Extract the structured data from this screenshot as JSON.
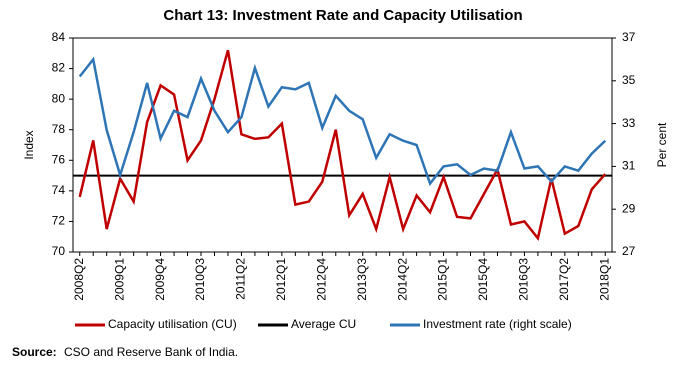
{
  "chart_data": {
    "type": "line",
    "title": "Chart 13: Investment Rate and Capacity Utilisation",
    "ylabel": "Index",
    "y2label": "Per cent",
    "categories": [
      "2008Q2",
      null,
      null,
      "2009Q1",
      null,
      null,
      "2009Q4",
      null,
      null,
      "2010Q3",
      null,
      null,
      "2011Q2",
      null,
      null,
      "2012Q1",
      null,
      null,
      "2012Q4",
      null,
      null,
      "2013Q3",
      null,
      null,
      "2014Q2",
      null,
      null,
      "2015Q1",
      null,
      null,
      "2015Q4",
      null,
      null,
      "2016Q3",
      null,
      null,
      "2017Q2",
      null,
      null,
      "2018Q1"
    ],
    "series": [
      {
        "name": "Capacity utilisation (CU)",
        "color": "#c00000",
        "axis": "y",
        "values": [
          73.6,
          77.3,
          71.5,
          74.8,
          73.3,
          78.5,
          80.9,
          80.3,
          76.0,
          77.3,
          80.0,
          83.2,
          77.7,
          77.4,
          77.5,
          78.4,
          73.1,
          73.3,
          74.6,
          78.0,
          72.4,
          73.8,
          71.5,
          74.9,
          71.5,
          73.7,
          72.6,
          74.9,
          72.3,
          72.2,
          73.8,
          75.4,
          71.8,
          72.0,
          70.9,
          74.8,
          71.2,
          71.7,
          74.1,
          75.1
        ]
      },
      {
        "name": "Investment rate (right scale)",
        "color": "#2e75b6",
        "axis": "y2",
        "values": [
          35.2,
          36.0,
          32.7,
          30.6,
          32.6,
          34.9,
          32.3,
          33.6,
          33.3,
          35.1,
          33.6,
          32.6,
          33.3,
          35.6,
          33.8,
          34.7,
          34.6,
          34.9,
          32.8,
          34.3,
          33.6,
          33.2,
          31.4,
          32.5,
          32.2,
          32.0,
          30.2,
          31.0,
          31.1,
          30.6,
          30.9,
          30.8,
          32.6,
          30.9,
          31.0,
          30.3,
          31.0,
          30.8,
          31.6,
          32.2
        ]
      }
    ],
    "reference_lines": [
      {
        "name": "Average CU",
        "value": 75,
        "color": "#000000"
      }
    ],
    "ylim": [
      70,
      84
    ],
    "yticks": [
      70,
      72,
      74,
      76,
      78,
      80,
      82,
      84
    ],
    "y2lim": [
      27,
      37
    ],
    "y2ticks": [
      27,
      29,
      31,
      33,
      35,
      37
    ],
    "source_label": "Source:",
    "source_text": "CSO and Reserve Bank of India."
  }
}
